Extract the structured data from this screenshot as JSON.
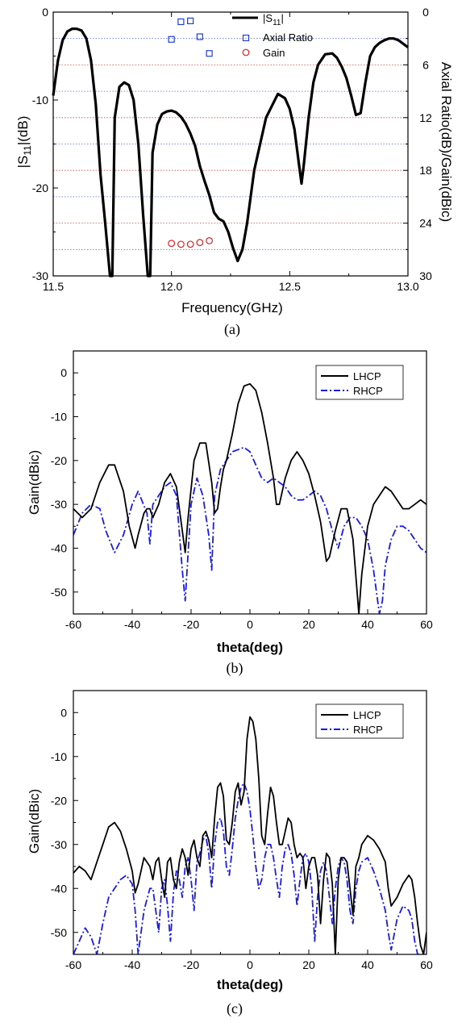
{
  "chart_data": [
    {
      "panel": "a",
      "caption": "(a)",
      "type": "line",
      "xlabel": "Frequency(GHz)",
      "ylabel": "|S11|(dB)",
      "ylabel_parts": [
        "|S",
        "11",
        "|(dB)"
      ],
      "y2label": "Axial Ratio(dB)/Gain(dBic)",
      "xlim": [
        11.5,
        13.0
      ],
      "ylim": [
        -30,
        0
      ],
      "y2lim": [
        30,
        0
      ],
      "xticks": [
        11.5,
        12.0,
        12.5,
        13.0
      ],
      "xtick_labels": [
        "11.5",
        "12.0",
        "12.5",
        "13.0"
      ],
      "yticks": [
        0,
        -10,
        -20,
        -30
      ],
      "yticks_minor": [
        -5,
        -15,
        -25
      ],
      "ytick_labels": [
        "0",
        "-10",
        "-20",
        "-30"
      ],
      "y2ticks": [
        0,
        6,
        12,
        18,
        24,
        30
      ],
      "y2ticks_minor": [
        3,
        9,
        15,
        21,
        27
      ],
      "y2tick_labels": [
        "0",
        "6",
        "12",
        "18",
        "24",
        "30"
      ],
      "gridlines_blue_y2": [
        3,
        9,
        15,
        21,
        27
      ],
      "gridlines_red_y2": [
        6,
        12,
        18,
        24
      ],
      "legend": {
        "placement": "top-center",
        "entries": [
          {
            "label": "|S11|",
            "label_parts": [
              "|S",
              "11",
              "|"
            ],
            "style": "line",
            "color": "#000000"
          },
          {
            "label": "Axial Ratio",
            "style": "square",
            "color": "#1f3fd8"
          },
          {
            "label": "Gain",
            "style": "circle",
            "color": "#e02020"
          }
        ]
      },
      "series": [
        {
          "name": "|S11|",
          "axis": "left",
          "color": "#000000",
          "x": [
            11.5,
            11.52,
            11.54,
            11.56,
            11.58,
            11.6,
            11.62,
            11.64,
            11.66,
            11.68,
            11.7,
            11.72,
            11.74,
            11.75,
            11.76,
            11.78,
            11.8,
            11.82,
            11.84,
            11.86,
            11.88,
            11.9,
            11.91,
            11.92,
            11.94,
            11.96,
            11.98,
            12.0,
            12.02,
            12.04,
            12.06,
            12.08,
            12.1,
            12.12,
            12.14,
            12.16,
            12.18,
            12.2,
            12.22,
            12.24,
            12.26,
            12.28,
            12.3,
            12.32,
            12.35,
            12.4,
            12.45,
            12.48,
            12.5,
            12.52,
            12.54,
            12.55,
            12.56,
            12.58,
            12.6,
            12.62,
            12.65,
            12.68,
            12.7,
            12.72,
            12.74,
            12.76,
            12.78,
            12.8,
            12.82,
            12.84,
            12.86,
            12.88,
            12.9,
            12.92,
            12.94,
            12.96,
            12.98,
            13.0
          ],
          "values": [
            -9.5,
            -5.5,
            -3.2,
            -2.2,
            -1.9,
            -1.9,
            -2.1,
            -3.0,
            -5.5,
            -10.5,
            -18.5,
            -24.0,
            -30.0,
            -30.0,
            -12.0,
            -8.5,
            -8.0,
            -8.3,
            -10.0,
            -15.0,
            -23.0,
            -30.0,
            -30.0,
            -16.0,
            -12.8,
            -11.6,
            -11.3,
            -11.2,
            -11.4,
            -11.9,
            -12.7,
            -13.8,
            -15.2,
            -17.5,
            -19.2,
            -20.8,
            -22.8,
            -23.5,
            -23.8,
            -25.0,
            -26.8,
            -28.3,
            -27.0,
            -24.0,
            -18.0,
            -12.0,
            -9.3,
            -9.8,
            -11.0,
            -13.3,
            -17.5,
            -19.5,
            -17.3,
            -12.0,
            -8.0,
            -6.0,
            -4.8,
            -4.7,
            -5.2,
            -6.2,
            -7.5,
            -9.5,
            -11.7,
            -11.5,
            -8.0,
            -5.0,
            -4.0,
            -3.5,
            -3.2,
            -3.0,
            -3.0,
            -3.2,
            -3.6,
            -4.0
          ]
        },
        {
          "name": "Axial Ratio",
          "axis": "right",
          "color": "#1f3fd8",
          "x": [
            12.0,
            12.04,
            12.08,
            12.12,
            12.16
          ],
          "values": [
            3.1,
            1.1,
            1.0,
            2.8,
            4.7
          ]
        },
        {
          "name": "Gain",
          "axis": "right",
          "color": "#e02020",
          "x": [
            12.0,
            12.04,
            12.08,
            12.12,
            12.16
          ],
          "values": [
            26.3,
            26.4,
            26.4,
            26.2,
            26.0
          ]
        }
      ]
    },
    {
      "panel": "b",
      "caption": "(b)",
      "type": "line",
      "xlabel": "theta(deg)",
      "ylabel": "Gain(dBic)",
      "xlim": [
        -60,
        60
      ],
      "ylim": [
        -55,
        5
      ],
      "xticks": [
        -60,
        -40,
        -20,
        0,
        20,
        40,
        60
      ],
      "xtick_labels": [
        "-60",
        "-40",
        "-20",
        "0",
        "20",
        "40",
        "60"
      ],
      "yticks": [
        0,
        -10,
        -20,
        -30,
        -40,
        -50
      ],
      "ytick_labels": [
        "0",
        "-10",
        "-20",
        "-30",
        "-40",
        "-50"
      ],
      "legend": {
        "placement": "top-right",
        "entries": [
          {
            "label": "LHCP",
            "style": "solid",
            "color": "#000000"
          },
          {
            "label": "RHCP",
            "style": "dashdot",
            "color": "#1a1af0"
          }
        ]
      },
      "series": [
        {
          "name": "LHCP",
          "color": "#000000",
          "dash": "solid",
          "x": [
            -60,
            -57,
            -54,
            -51,
            -48,
            -46,
            -43,
            -41,
            -39,
            -38,
            -36,
            -35,
            -34,
            -33,
            -31,
            -29,
            -27,
            -25,
            -23,
            -22,
            -21,
            -19,
            -17,
            -15,
            -13,
            -12,
            -11,
            -10,
            -9,
            -8,
            -6,
            -4,
            -2,
            0,
            2,
            4,
            6,
            8,
            9,
            10,
            12,
            14,
            16,
            18,
            20,
            22,
            24,
            26,
            27,
            29,
            31,
            33,
            35,
            37,
            38,
            40,
            42,
            44,
            46,
            48,
            50,
            52,
            54,
            56,
            58,
            60
          ],
          "values": [
            -31,
            -33,
            -31,
            -25,
            -21,
            -21,
            -27,
            -35,
            -40,
            -37,
            -32,
            -31,
            -31,
            -33,
            -30,
            -25,
            -23,
            -26,
            -36,
            -41,
            -33,
            -20,
            -16,
            -16,
            -25,
            -32,
            -31,
            -26,
            -22,
            -20,
            -14,
            -7,
            -3,
            -2.5,
            -4,
            -9,
            -16,
            -24,
            -30,
            -30,
            -24,
            -20,
            -18,
            -20,
            -23,
            -28,
            -34,
            -43,
            -42,
            -36,
            -31,
            -31,
            -38,
            -55,
            -46,
            -35,
            -30,
            -28,
            -26,
            -27,
            -29,
            -31,
            -31,
            -30,
            -29,
            -30
          ]
        },
        {
          "name": "RHCP",
          "color": "#1a1af0",
          "dash": "dashdot",
          "x": [
            -60,
            -57,
            -54,
            -51,
            -49,
            -46,
            -43,
            -40,
            -38,
            -35,
            -34,
            -33,
            -31,
            -29,
            -27,
            -25,
            -23,
            -22,
            -20,
            -18,
            -16,
            -14,
            -13,
            -12,
            -10,
            -8,
            -6,
            -4,
            -2,
            0,
            2,
            4,
            6,
            8,
            10,
            12,
            14,
            16,
            18,
            20,
            22,
            24,
            26,
            28,
            30,
            32,
            34,
            36,
            38,
            40,
            42,
            44,
            45,
            46,
            48,
            50,
            52,
            54,
            56,
            58,
            60
          ],
          "values": [
            -37,
            -32,
            -30,
            -31,
            -36,
            -41,
            -37,
            -30,
            -27,
            -32,
            -39,
            -30,
            -28,
            -26,
            -25,
            -28,
            -45,
            -52,
            -30,
            -24,
            -28,
            -37,
            -45,
            -28,
            -22,
            -20,
            -18,
            -17.5,
            -17,
            -18,
            -21,
            -24,
            -25,
            -24,
            -25,
            -26,
            -28,
            -29,
            -29,
            -28,
            -27,
            -28,
            -31,
            -36,
            -40,
            -35,
            -33,
            -33,
            -35,
            -38,
            -45,
            -55,
            -52,
            -44,
            -38,
            -35,
            -35,
            -36,
            -38,
            -40,
            -41
          ]
        }
      ]
    },
    {
      "panel": "c",
      "caption": "(c)",
      "type": "line",
      "xlabel": "theta(deg)",
      "ylabel": "Gain(dBic)",
      "xlim": [
        -60,
        60
      ],
      "ylim": [
        -55,
        5
      ],
      "xticks": [
        -60,
        -40,
        -20,
        0,
        20,
        40,
        60
      ],
      "xtick_labels": [
        "-60",
        "-40",
        "-20",
        "0",
        "20",
        "40",
        "60"
      ],
      "yticks": [
        0,
        -10,
        -20,
        -30,
        -40,
        -50
      ],
      "ytick_labels": [
        "0",
        "-10",
        "-20",
        "-30",
        "-40",
        "-50"
      ],
      "legend": {
        "placement": "top-right",
        "entries": [
          {
            "label": "LHCP",
            "style": "solid",
            "color": "#000000"
          },
          {
            "label": "RHCP",
            "style": "dashdot",
            "color": "#1a1af0"
          }
        ]
      },
      "series": [
        {
          "name": "LHCP",
          "color": "#000000",
          "dash": "solid",
          "x": [
            -60,
            -58,
            -56,
            -54,
            -52,
            -50,
            -48,
            -46,
            -44,
            -42,
            -40,
            -39,
            -38,
            -36,
            -34,
            -33,
            -32,
            -31,
            -30,
            -29,
            -28,
            -27,
            -26,
            -25,
            -24,
            -23,
            -22,
            -21,
            -20,
            -19,
            -18,
            -17,
            -16,
            -15,
            -14,
            -13,
            -12,
            -11,
            -10,
            -9,
            -8,
            -7,
            -6,
            -5,
            -4,
            -3,
            -2,
            -1,
            0,
            1,
            2,
            3,
            4,
            5,
            6,
            7,
            8,
            9,
            10,
            11,
            12,
            13,
            14,
            15,
            16,
            17,
            18,
            19,
            20,
            21,
            22,
            23,
            24,
            25,
            26,
            27,
            28,
            29,
            30,
            31,
            32,
            33,
            34,
            35,
            36,
            37,
            38,
            40,
            42,
            44,
            46,
            47,
            48,
            50,
            52,
            54,
            55,
            56,
            57,
            58,
            59,
            60
          ],
          "values": [
            -36.5,
            -35,
            -36,
            -38,
            -34,
            -30,
            -26,
            -25,
            -27,
            -31,
            -36,
            -41,
            -39,
            -33,
            -35,
            -38,
            -34,
            -33,
            -38,
            -42,
            -34,
            -33,
            -38,
            -40,
            -34,
            -31,
            -33,
            -37,
            -31,
            -29,
            -33,
            -35,
            -28,
            -27,
            -29,
            -33,
            -24,
            -17,
            -16,
            -19,
            -29,
            -30,
            -25,
            -18,
            -16,
            -21,
            -18,
            -6,
            -1,
            -2,
            -6,
            -15,
            -28,
            -30,
            -23,
            -17,
            -19,
            -25,
            -30,
            -30,
            -27,
            -24,
            -25,
            -30,
            -33,
            -32,
            -33,
            -40,
            -35,
            -33,
            -33,
            -37,
            -48,
            -38,
            -32,
            -33,
            -39,
            -55,
            -38,
            -33,
            -33,
            -34,
            -40,
            -46,
            -35,
            -33,
            -30,
            -28,
            -29,
            -31,
            -34,
            -40,
            -44,
            -42,
            -39,
            -37,
            -38,
            -42,
            -48,
            -53,
            -55,
            -50
          ]
        },
        {
          "name": "RHCP",
          "color": "#1a1af0",
          "dash": "dashdot",
          "x": [
            -60,
            -58,
            -56,
            -54,
            -52,
            -50,
            -48,
            -46,
            -44,
            -42,
            -40,
            -39,
            -38,
            -36,
            -34,
            -33,
            -32,
            -31,
            -30,
            -29,
            -28,
            -27,
            -26,
            -25,
            -24,
            -23,
            -22,
            -21,
            -20,
            -19,
            -18,
            -17,
            -16,
            -15,
            -14,
            -13,
            -12,
            -11,
            -10,
            -9,
            -8,
            -7,
            -6,
            -5,
            -4,
            -3,
            -2,
            -1,
            0,
            1,
            2,
            3,
            4,
            5,
            6,
            7,
            8,
            9,
            10,
            11,
            12,
            13,
            14,
            15,
            16,
            17,
            18,
            19,
            20,
            21,
            22,
            23,
            24,
            25,
            26,
            27,
            28,
            29,
            30,
            31,
            32,
            33,
            34,
            35,
            36,
            37,
            38,
            40,
            42,
            44,
            46,
            47,
            48,
            50,
            52,
            54,
            55,
            56,
            57,
            58,
            59,
            60
          ],
          "values": [
            -55,
            -52,
            -49,
            -51,
            -55,
            -48,
            -42,
            -40,
            -38,
            -37,
            -39,
            -45,
            -55,
            -45,
            -40,
            -40,
            -45,
            -50,
            -40,
            -38,
            -44,
            -52,
            -41,
            -36,
            -38,
            -42,
            -35,
            -33,
            -38,
            -45,
            -34,
            -32,
            -29,
            -28,
            -32,
            -40,
            -30,
            -25,
            -24,
            -27,
            -35,
            -37,
            -31,
            -24,
            -20,
            -17,
            -16,
            -18,
            -22,
            -28,
            -35,
            -40,
            -38,
            -33,
            -30,
            -30,
            -33,
            -38,
            -42,
            -35,
            -31,
            -30,
            -32,
            -37,
            -44,
            -38,
            -33,
            -32,
            -34,
            -40,
            -52,
            -42,
            -36,
            -34,
            -36,
            -42,
            -48,
            -40,
            -35,
            -33,
            -34,
            -38,
            -45,
            -48,
            -40,
            -36,
            -34,
            -33,
            -36,
            -40,
            -45,
            -50,
            -54,
            -47,
            -44,
            -45,
            -47,
            -52,
            -55,
            -55,
            -55,
            -55
          ]
        }
      ]
    }
  ]
}
